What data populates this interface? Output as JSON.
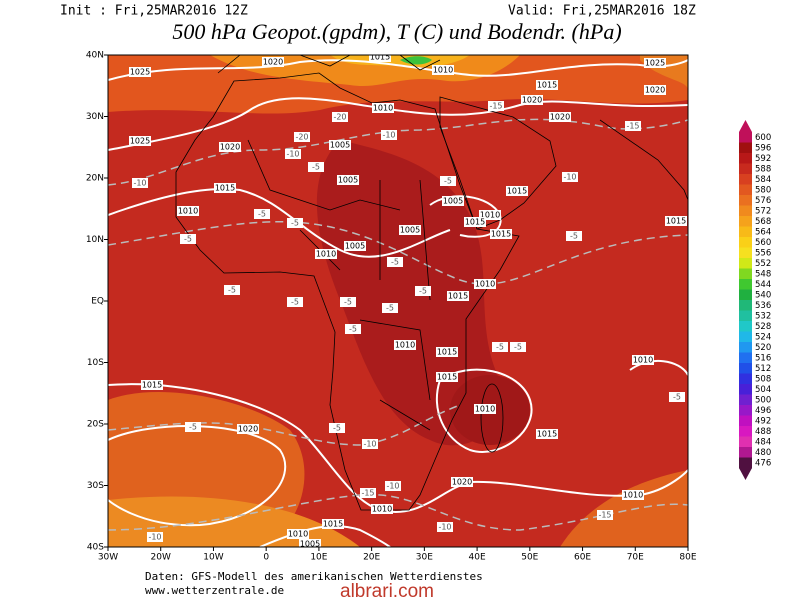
{
  "header": {
    "init": "Init : Fri,25MAR2016 12Z",
    "valid": "Valid: Fri,25MAR2016 18Z",
    "title": "500 hPa Geopot.(gpdm), T (C) und Bodendr. (hPa)"
  },
  "map": {
    "lon_labels": [
      "30W",
      "20W",
      "10W",
      "0",
      "10E",
      "20E",
      "30E",
      "40E",
      "50E",
      "60E",
      "70E",
      "80E"
    ],
    "lat_labels": [
      "40N",
      "30N",
      "20N",
      "10N",
      "EQ",
      "10S",
      "20S",
      "30S",
      "40S"
    ],
    "isobar_labels": [
      "1025",
      "1020",
      "1015",
      "1010",
      "1015",
      "1025",
      "1020",
      "1010",
      "1020",
      "1020",
      "1025",
      "1020",
      "1005",
      "1005",
      "1015",
      "1015",
      "1010",
      "1005",
      "1010",
      "1015",
      "1005",
      "1015",
      "1015",
      "1005",
      "1010",
      "1010",
      "1015",
      "1010",
      "1015",
      "1010",
      "1015",
      "1015",
      "1010",
      "1020",
      "1015",
      "1020",
      "1010",
      "1010",
      "1015",
      "1010",
      "1005"
    ],
    "temp_labels": [
      "-20",
      "-20",
      "-10",
      "-10",
      "-15",
      "-15",
      "-10",
      "-10",
      "-5",
      "-5",
      "-5",
      "-5",
      "-5",
      "-5",
      "-5",
      "-5",
      "-5",
      "-5",
      "-5",
      "-5",
      "-5",
      "-5",
      "-5",
      "-5",
      "-5",
      "-10",
      "-15",
      "-10",
      "-10",
      "-15",
      "-10",
      "-5"
    ]
  },
  "colorbar": {
    "levels": [
      600,
      596,
      592,
      588,
      584,
      580,
      576,
      572,
      568,
      564,
      560,
      556,
      552,
      548,
      544,
      540,
      536,
      532,
      528,
      524,
      520,
      516,
      512,
      508,
      504,
      500,
      496,
      492,
      488,
      484,
      480,
      476
    ],
    "colors": [
      "#c0105a",
      "#a01010",
      "#b81818",
      "#c82a1e",
      "#d84020",
      "#e25820",
      "#ea7020",
      "#f08a1e",
      "#f5a21c",
      "#f8ba18",
      "#fad018",
      "#f6e020",
      "#d0e818",
      "#80d820",
      "#40c830",
      "#20b040",
      "#20b878",
      "#20c0a0",
      "#20c8c8",
      "#20b8e8",
      "#2098f0",
      "#2070f0",
      "#2050e8",
      "#3030e0",
      "#4820d8",
      "#7020d0",
      "#9818c8",
      "#c010c0",
      "#d818c0",
      "#e030b0",
      "#b01890",
      "#501040"
    ]
  },
  "footer": {
    "source": "Daten: GFS-Modell des amerikanischen Wetterdienstes",
    "website": "www.wetterzentrale.de",
    "watermark": "albrari.com"
  }
}
